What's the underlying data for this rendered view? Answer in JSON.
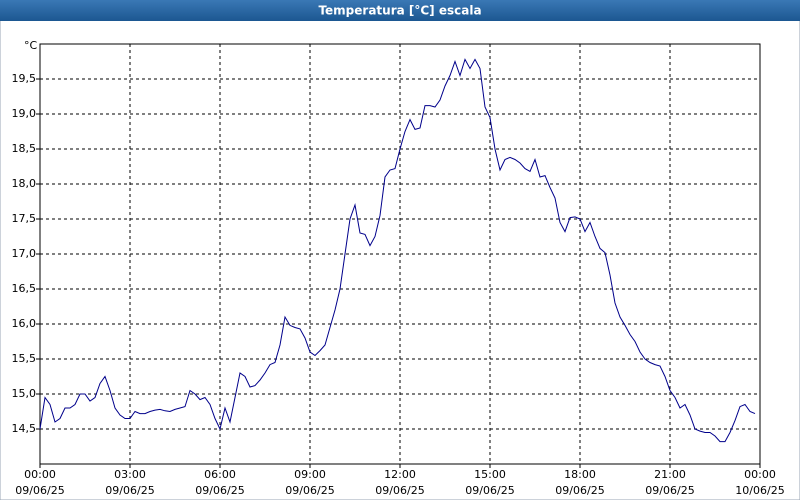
{
  "chart_data": {
    "type": "line",
    "title": "Temperatura [°C] escala",
    "ylabel": "°C",
    "x": [
      0,
      10,
      20,
      30,
      40,
      50,
      60,
      70,
      80,
      90,
      100,
      110,
      120,
      130,
      140,
      150,
      160,
      170,
      180,
      190,
      200,
      210,
      220,
      230,
      240,
      250,
      260,
      270,
      280,
      290,
      300,
      310,
      320,
      330,
      340,
      350,
      360,
      370,
      380,
      390,
      400,
      410,
      420,
      430,
      440,
      450,
      460,
      470,
      480,
      490,
      500,
      510,
      520,
      530,
      540,
      550,
      560,
      570,
      580,
      590,
      600,
      610,
      620,
      630,
      640,
      650,
      660,
      670,
      680,
      690,
      700,
      710,
      720,
      730,
      740,
      750,
      760,
      770,
      780,
      790,
      800,
      810,
      820,
      830,
      840,
      850,
      860,
      870,
      880,
      890,
      900,
      910,
      920,
      930,
      940,
      950,
      960,
      970,
      980,
      990,
      1000,
      1010,
      1020,
      1030,
      1040,
      1050,
      1060,
      1070,
      1080,
      1090,
      1100,
      1110,
      1120,
      1130,
      1140,
      1150,
      1160,
      1170,
      1180,
      1190,
      1200,
      1210,
      1220,
      1230,
      1240,
      1250,
      1260,
      1270,
      1280,
      1290,
      1300,
      1310,
      1320,
      1330,
      1340,
      1350,
      1360,
      1370,
      1380,
      1390,
      1400,
      1410,
      1420,
      1430
    ],
    "series": [
      {
        "name": "Temperatura",
        "color": "#00008b",
        "values": [
          14.5,
          14.95,
          14.85,
          14.6,
          14.65,
          14.8,
          14.8,
          14.85,
          15.0,
          15.0,
          14.9,
          14.95,
          15.15,
          15.25,
          15.05,
          14.8,
          14.7,
          14.65,
          14.65,
          14.75,
          14.72,
          14.72,
          14.75,
          14.77,
          14.78,
          14.76,
          14.75,
          14.78,
          14.8,
          14.82,
          15.05,
          15.0,
          14.92,
          14.95,
          14.85,
          14.65,
          14.5,
          14.8,
          14.6,
          14.95,
          15.3,
          15.25,
          15.1,
          15.12,
          15.2,
          15.3,
          15.42,
          15.45,
          15.7,
          16.1,
          15.98,
          15.95,
          15.93,
          15.8,
          15.6,
          15.55,
          15.62,
          15.7,
          15.95,
          16.2,
          16.5,
          17.0,
          17.5,
          17.7,
          17.3,
          17.28,
          17.12,
          17.25,
          17.55,
          18.1,
          18.2,
          18.22,
          18.5,
          18.75,
          18.92,
          18.78,
          18.8,
          19.12,
          19.12,
          19.1,
          19.2,
          19.4,
          19.55,
          19.75,
          19.55,
          19.78,
          19.65,
          19.78,
          19.65,
          19.1,
          18.95,
          18.5,
          18.2,
          18.35,
          18.38,
          18.35,
          18.3,
          18.22,
          18.18,
          18.35,
          18.1,
          18.12,
          17.95,
          17.8,
          17.45,
          17.32,
          17.52,
          17.53,
          17.5,
          17.32,
          17.45,
          17.25,
          17.08,
          17.02,
          16.7,
          16.3,
          16.1,
          15.98,
          15.85,
          15.75,
          15.6,
          15.5,
          15.45,
          15.42,
          15.4,
          15.25,
          15.05,
          14.95,
          14.8,
          14.85,
          14.7,
          14.5,
          14.47,
          14.45,
          14.45,
          14.4,
          14.32,
          14.32,
          14.45,
          14.62,
          14.82,
          14.85,
          14.75,
          14.72
        ]
      }
    ],
    "xlim": [
      0,
      1440
    ],
    "xticks": [
      {
        "value": 0,
        "label": "00:00"
      },
      {
        "value": 180,
        "label": "03:00"
      },
      {
        "value": 360,
        "label": "06:00"
      },
      {
        "value": 540,
        "label": "09:00"
      },
      {
        "value": 720,
        "label": "12:00"
      },
      {
        "value": 900,
        "label": "15:00"
      },
      {
        "value": 1080,
        "label": "18:00"
      },
      {
        "value": 1260,
        "label": "21:00"
      },
      {
        "value": 1440,
        "label": "00:00"
      }
    ],
    "xtick_dates": [
      "09/06/25",
      "09/06/25",
      "09/06/25",
      "09/06/25",
      "09/06/25",
      "09/06/25",
      "09/06/25",
      "09/06/25",
      "10/06/25"
    ],
    "ylim": [
      14,
      20
    ],
    "yticks": [
      {
        "value": 14.5,
        "label": "14,5"
      },
      {
        "value": 15,
        "label": "15,0"
      },
      {
        "value": 15.5,
        "label": "15,5"
      },
      {
        "value": 16,
        "label": "16,0"
      },
      {
        "value": 16.5,
        "label": "16,5"
      },
      {
        "value": 17,
        "label": "17,0"
      },
      {
        "value": 17.5,
        "label": "17,5"
      },
      {
        "value": 18,
        "label": "18,0"
      },
      {
        "value": 18.5,
        "label": "18,5"
      },
      {
        "value": 19,
        "label": "19,0"
      },
      {
        "value": 19.5,
        "label": "19,5"
      }
    ],
    "grid": true
  }
}
